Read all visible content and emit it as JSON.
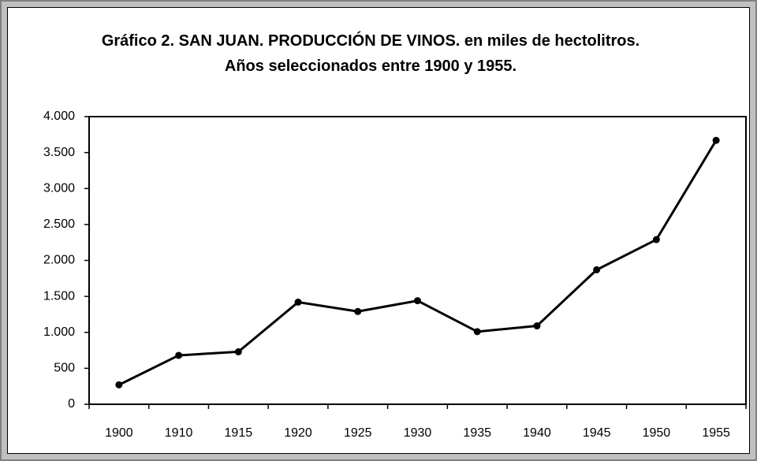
{
  "chart_data": {
    "type": "line",
    "title": "Gráfico 2. SAN JUAN. PRODUCCIÓN DE VINOS. en miles de hectolitros. Años seleccionados entre 1900 y 1955.",
    "categories": [
      "1900",
      "1910",
      "1915",
      "1920",
      "1925",
      "1930",
      "1935",
      "1940",
      "1945",
      "1950",
      "1955"
    ],
    "series": [
      {
        "color": "#000000",
        "values": [
          270,
          680,
          730,
          1420,
          1290,
          1440,
          1010,
          1090,
          1870,
          2290,
          3670
        ]
      }
    ],
    "ylim": [
      0,
      4000
    ],
    "yticks": [
      0,
      500,
      {
        "value": 1000,
        "label": "1.000"
      },
      {
        "value": 1500,
        "label": "1.500"
      },
      {
        "value": 2000,
        "label": "2.000"
      },
      {
        "value": 2500,
        "label": "2.500"
      },
      {
        "value": 3000,
        "label": "3.000"
      },
      {
        "value": 3500,
        "label": "3.500"
      },
      {
        "value": 4000,
        "label": "4.000"
      }
    ],
    "grid": false
  }
}
